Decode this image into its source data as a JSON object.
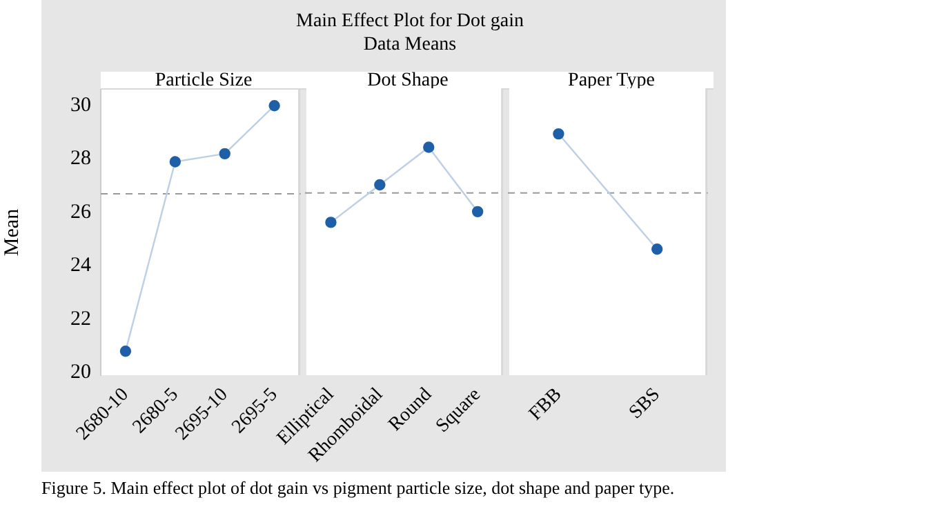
{
  "chart_data": [
    {
      "type": "line",
      "title": "Particle Size",
      "ylabel": "Mean",
      "categories": [
        "2680-10",
        "2680-5",
        "2695-10",
        "2695-5"
      ],
      "series": [
        {
          "color": "#1f5fa8",
          "values": [
            20.8,
            27.9,
            28.2,
            30.0
          ]
        }
      ],
      "ylim": [
        19.9,
        30.6
      ],
      "yticks": [
        20,
        22,
        24,
        26,
        28,
        30
      ],
      "grid": false,
      "legend": false,
      "marker": "circle",
      "ref_lines": [
        {
          "axis": "y",
          "value": 26.7,
          "color": "#999999",
          "line_style": "dashed"
        }
      ],
      "annotations": [
        "Main Effect Plot for Dot gain",
        "Data Means",
        "Figure 5. Main effect plot of dot gain vs pigment particle size, dot shape and paper type."
      ]
    },
    {
      "type": "line",
      "title": "Dot Shape",
      "categories": [
        "Elliptical",
        "Rhomboidal",
        "Round",
        "Square"
      ],
      "series": [
        {
          "color": "#1f5fa8",
          "values": [
            25.6,
            27.0,
            28.4,
            26.0
          ]
        }
      ],
      "ylim": [
        19.9,
        30.6
      ],
      "yticks": [
        20,
        22,
        24,
        26,
        28,
        30
      ],
      "tick_labels": "x",
      "grid": false,
      "legend": false,
      "marker": "circle",
      "ref_lines": [
        {
          "axis": "y",
          "value": 26.7,
          "color": "#999999",
          "line_style": "dashed"
        }
      ]
    },
    {
      "type": "line",
      "title": "Paper Type",
      "categories": [
        "FBB",
        "SBS"
      ],
      "series": [
        {
          "color": "#1f5fa8",
          "values": [
            28.9,
            24.6
          ]
        }
      ],
      "ylim": [
        19.9,
        30.6
      ],
      "yticks": [
        20,
        22,
        24,
        26,
        28,
        30
      ],
      "tick_labels": "x",
      "grid": false,
      "legend": false,
      "marker": "circle",
      "ref_lines": [
        {
          "axis": "y",
          "value": 26.7,
          "color": "#999999",
          "line_style": "dashed"
        }
      ]
    }
  ]
}
